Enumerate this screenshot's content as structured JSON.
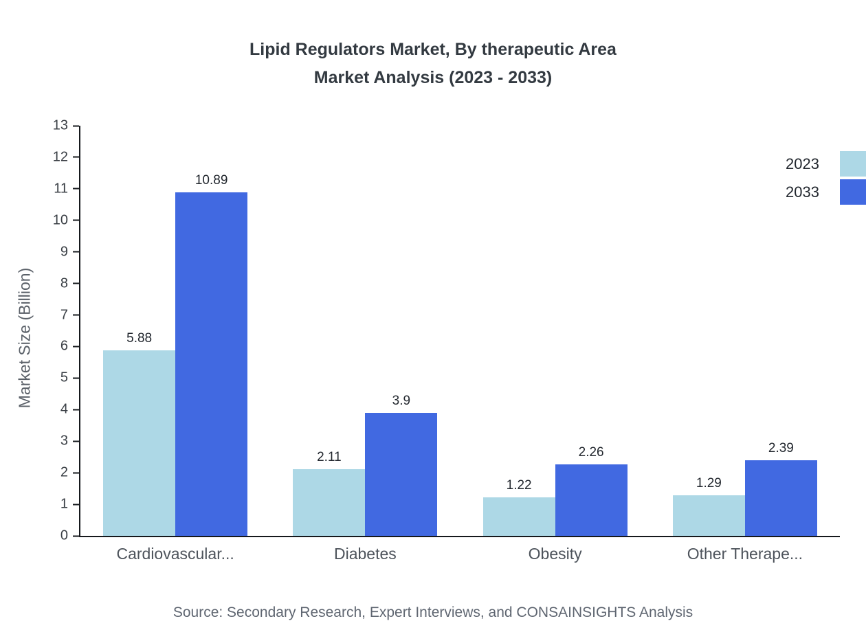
{
  "title": {
    "line1": "Lipid Regulators Market, By therapeutic Area",
    "line2": "Market Analysis (2023 - 2033)"
  },
  "chart_data": {
    "type": "bar",
    "categories": [
      "Cardiovascular...",
      "Diabetes",
      "Obesity",
      "Other Therape..."
    ],
    "series": [
      {
        "name": "2023",
        "color": "#ADD8E6",
        "values": [
          5.88,
          2.11,
          1.22,
          1.29
        ]
      },
      {
        "name": "2033",
        "color": "#4169E1",
        "values": [
          10.89,
          3.9,
          2.26,
          2.39
        ]
      }
    ],
    "xlabel": "",
    "ylabel": "Market Size (Billion)",
    "ylim": [
      0,
      13
    ],
    "yticks": [
      0,
      1,
      2,
      3,
      4,
      5,
      6,
      7,
      8,
      9,
      10,
      11,
      12,
      13
    ],
    "grid": false,
    "legend_position": "top-right"
  },
  "source": "Source: Secondary Research, Expert Interviews, and CONSAINSIGHTS Analysis"
}
